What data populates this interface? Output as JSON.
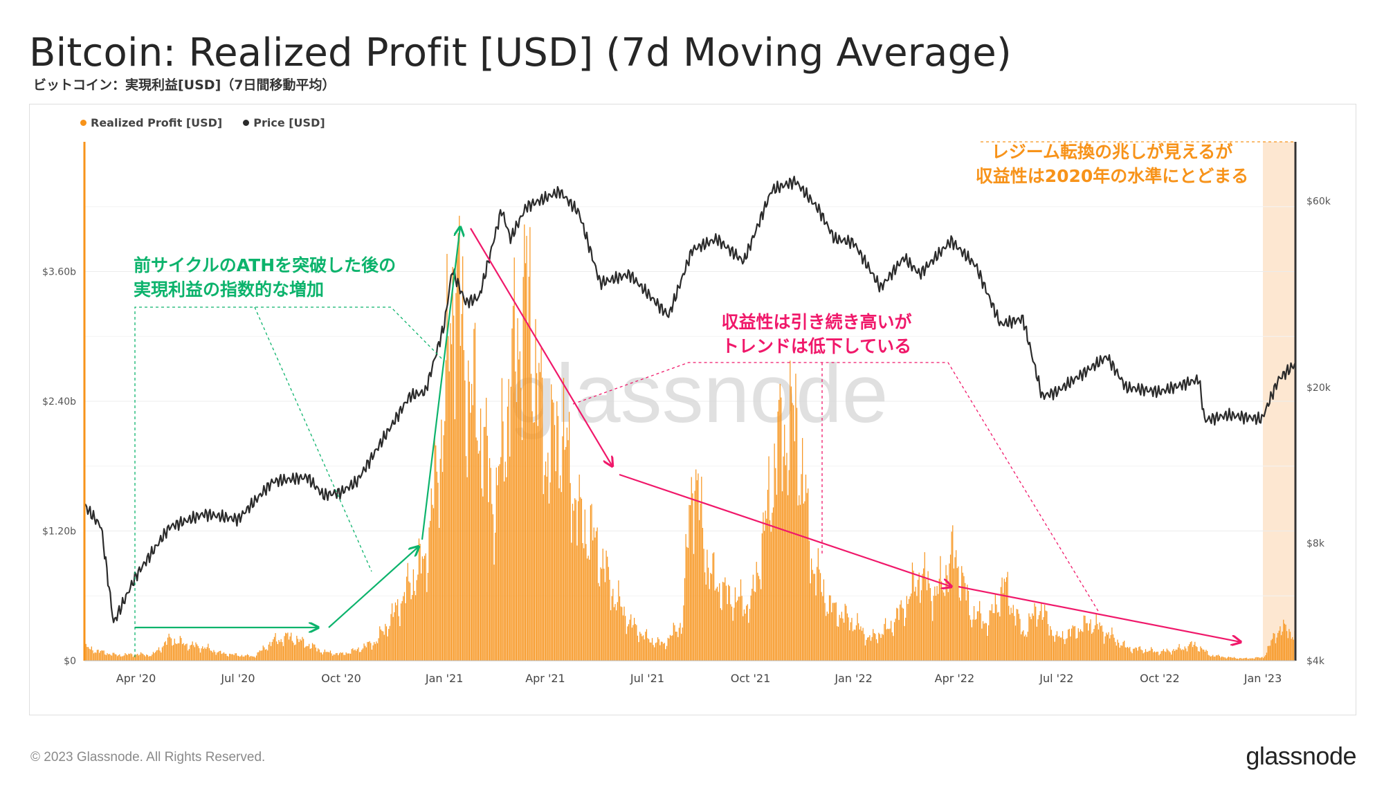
{
  "header": {
    "title": "Bitcoin: Realized Profit [USD] (7d Moving Average)",
    "subtitle": "ビットコイン：実現利益[USD]（7日間移動平均）"
  },
  "footer": {
    "copyright": "© 2023 Glassnode. All Rights Reserved.",
    "brand": "glassnode"
  },
  "watermark": "glassnode",
  "colors": {
    "profit": "#f7931a",
    "price": "#2b2b2b",
    "green_annotation": "#0cb36c",
    "pink_annotation": "#f0186a",
    "orange_annotation": "#f7931a",
    "highlight": "#fde3c9"
  },
  "annotations": {
    "green": [
      "前サイクルのATHを突破した後の",
      "実現利益の指数的な増加"
    ],
    "pink": [
      "収益性は引き続き高いが",
      "トレンドは低下している"
    ],
    "orange": [
      "レジーム転換の兆しが見えるが",
      "収益性は2020年の水準にとどまる"
    ]
  },
  "chart_data": {
    "type": "bar",
    "legend": [
      "Realized Profit [USD]",
      "Price [USD]"
    ],
    "legend_position": "top-left",
    "grid": true,
    "x_ticks": [
      "Apr '20",
      "Jul '20",
      "Oct '20",
      "Jan '21",
      "Apr '21",
      "Jul '21",
      "Oct '21",
      "Jan '22",
      "Apr '22",
      "Jul '22",
      "Oct '22",
      "Jan '23"
    ],
    "x_range": [
      "2020-02-15",
      "2023-01-30"
    ],
    "highlight_range": [
      "2023-01-01",
      "2023-01-30"
    ],
    "y_left": {
      "label": "Realized Profit [USD]",
      "ticks": [
        "$0",
        "$1.20b",
        "$2.40b",
        "$3.60b"
      ],
      "range": [
        0,
        4.8
      ]
    },
    "y_right": {
      "label": "Price [USD]",
      "scale": "log",
      "ticks": [
        "$4k",
        "$8k",
        "$20k",
        "$60k"
      ],
      "range": [
        4000,
        85000
      ]
    },
    "series": [
      {
        "name": "Realized Profit [USD]",
        "axis": "left",
        "unit": "USD billions",
        "points": [
          [
            "2020-02-15",
            0.12
          ],
          [
            "2020-03-01",
            0.08
          ],
          [
            "2020-03-15",
            0.05
          ],
          [
            "2020-04-01",
            0.06
          ],
          [
            "2020-04-15",
            0.05
          ],
          [
            "2020-05-01",
            0.2
          ],
          [
            "2020-05-15",
            0.15
          ],
          [
            "2020-06-01",
            0.12
          ],
          [
            "2020-06-15",
            0.07
          ],
          [
            "2020-07-01",
            0.05
          ],
          [
            "2020-07-15",
            0.04
          ],
          [
            "2020-08-01",
            0.18
          ],
          [
            "2020-08-15",
            0.22
          ],
          [
            "2020-09-01",
            0.15
          ],
          [
            "2020-09-15",
            0.08
          ],
          [
            "2020-10-01",
            0.06
          ],
          [
            "2020-10-15",
            0.1
          ],
          [
            "2020-11-01",
            0.18
          ],
          [
            "2020-11-15",
            0.4
          ],
          [
            "2020-12-01",
            0.7
          ],
          [
            "2020-12-15",
            0.95
          ],
          [
            "2021-01-01",
            2.3
          ],
          [
            "2021-01-10",
            3.75
          ],
          [
            "2021-01-20",
            2.6
          ],
          [
            "2021-02-01",
            2.2
          ],
          [
            "2021-02-15",
            1.4
          ],
          [
            "2021-03-01",
            2.6
          ],
          [
            "2021-03-15",
            3.4
          ],
          [
            "2021-04-01",
            1.9
          ],
          [
            "2021-04-15",
            2.15
          ],
          [
            "2021-05-01",
            1.3
          ],
          [
            "2021-05-15",
            1.1
          ],
          [
            "2021-06-01",
            0.6
          ],
          [
            "2021-06-15",
            0.35
          ],
          [
            "2021-07-01",
            0.2
          ],
          [
            "2021-07-15",
            0.15
          ],
          [
            "2021-08-01",
            0.35
          ],
          [
            "2021-08-10",
            1.8
          ],
          [
            "2021-08-25",
            0.8
          ],
          [
            "2021-09-10",
            0.6
          ],
          [
            "2021-10-01",
            0.5
          ],
          [
            "2021-10-15",
            1.3
          ],
          [
            "2021-10-25",
            2.0
          ],
          [
            "2021-11-10",
            2.2
          ],
          [
            "2021-11-25",
            0.9
          ],
          [
            "2021-12-10",
            0.5
          ],
          [
            "2022-01-01",
            0.35
          ],
          [
            "2022-01-15",
            0.2
          ],
          [
            "2022-02-01",
            0.3
          ],
          [
            "2022-02-15",
            0.5
          ],
          [
            "2022-03-01",
            0.8
          ],
          [
            "2022-03-15",
            0.6
          ],
          [
            "2022-04-01",
            1.0
          ],
          [
            "2022-04-15",
            0.45
          ],
          [
            "2022-05-01",
            0.35
          ],
          [
            "2022-05-15",
            0.7
          ],
          [
            "2022-06-01",
            0.25
          ],
          [
            "2022-06-15",
            0.5
          ],
          [
            "2022-07-01",
            0.2
          ],
          [
            "2022-08-01",
            0.35
          ],
          [
            "2022-08-15",
            0.25
          ],
          [
            "2022-09-01",
            0.12
          ],
          [
            "2022-09-15",
            0.1
          ],
          [
            "2022-10-01",
            0.08
          ],
          [
            "2022-10-15",
            0.1
          ],
          [
            "2022-11-01",
            0.15
          ],
          [
            "2022-11-15",
            0.05
          ],
          [
            "2022-12-01",
            0.03
          ],
          [
            "2022-12-15",
            0.02
          ],
          [
            "2023-01-01",
            0.03
          ],
          [
            "2023-01-15",
            0.3
          ],
          [
            "2023-01-30",
            0.25
          ]
        ]
      },
      {
        "name": "Price [USD]",
        "axis": "right",
        "unit": "USD",
        "points": [
          [
            "2020-02-15",
            10000
          ],
          [
            "2020-03-01",
            8800
          ],
          [
            "2020-03-12",
            5000
          ],
          [
            "2020-04-01",
            6600
          ],
          [
            "2020-05-01",
            8800
          ],
          [
            "2020-06-01",
            9500
          ],
          [
            "2020-07-01",
            9200
          ],
          [
            "2020-08-01",
            11500
          ],
          [
            "2020-09-01",
            11800
          ],
          [
            "2020-09-15",
            10600
          ],
          [
            "2020-10-01",
            10800
          ],
          [
            "2020-10-15",
            11500
          ],
          [
            "2020-11-01",
            13800
          ],
          [
            "2020-11-15",
            16000
          ],
          [
            "2020-12-01",
            19000
          ],
          [
            "2020-12-15",
            19500
          ],
          [
            "2021-01-01",
            29000
          ],
          [
            "2021-01-08",
            40000
          ],
          [
            "2021-01-20",
            33000
          ],
          [
            "2021-02-01",
            34000
          ],
          [
            "2021-02-21",
            57000
          ],
          [
            "2021-03-01",
            48000
          ],
          [
            "2021-03-15",
            58000
          ],
          [
            "2021-04-14",
            63500
          ],
          [
            "2021-05-01",
            56000
          ],
          [
            "2021-05-20",
            37000
          ],
          [
            "2021-06-15",
            39000
          ],
          [
            "2021-07-20",
            30500
          ],
          [
            "2021-08-10",
            45000
          ],
          [
            "2021-09-01",
            48000
          ],
          [
            "2021-09-25",
            42000
          ],
          [
            "2021-10-20",
            64000
          ],
          [
            "2021-11-10",
            67500
          ],
          [
            "2021-12-01",
            57000
          ],
          [
            "2021-12-15",
            48000
          ],
          [
            "2022-01-01",
            47000
          ],
          [
            "2022-01-25",
            36000
          ],
          [
            "2022-02-15",
            43000
          ],
          [
            "2022-03-01",
            39000
          ],
          [
            "2022-03-29",
            47500
          ],
          [
            "2022-04-20",
            41000
          ],
          [
            "2022-05-12",
            29000
          ],
          [
            "2022-06-01",
            30000
          ],
          [
            "2022-06-18",
            19000
          ],
          [
            "2022-07-01",
            19500
          ],
          [
            "2022-08-15",
            24000
          ],
          [
            "2022-09-01",
            20000
          ],
          [
            "2022-10-01",
            19500
          ],
          [
            "2022-11-05",
            21000
          ],
          [
            "2022-11-10",
            16500
          ],
          [
            "2022-12-01",
            17000
          ],
          [
            "2022-12-31",
            16600
          ],
          [
            "2023-01-15",
            21000
          ],
          [
            "2023-01-30",
            23000
          ]
        ]
      }
    ]
  }
}
